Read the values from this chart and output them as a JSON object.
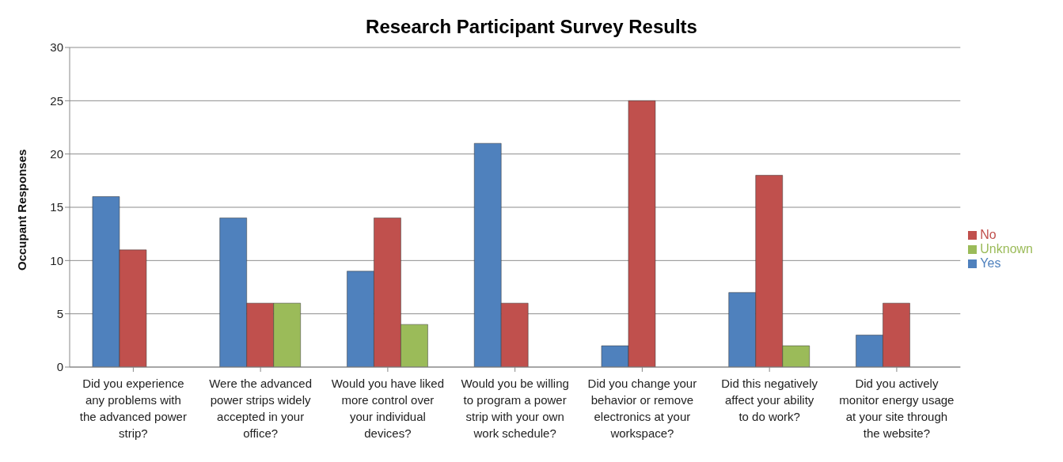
{
  "chart_data": {
    "type": "bar",
    "title": "Research Participant Survey Results",
    "ylabel": "Occupant Responses",
    "categories": [
      "Did you experience any problems with the advanced power strip?",
      "Were the advanced power strips widely accepted in your office?",
      "Would you have liked more control over your individual devices?",
      "Would you be willing to program a power strip with your own work schedule?",
      "Did you change your behavior or remove electronics at your workspace?",
      "Did this negatively affect your ability to do work?",
      "Did you actively monitor energy usage at your site through the website?"
    ],
    "series": [
      {
        "name": "Yes",
        "color": "#4f81bd",
        "values": [
          16,
          14,
          9,
          21,
          2,
          7,
          3
        ]
      },
      {
        "name": "No",
        "color": "#c0504d",
        "values": [
          11,
          6,
          14,
          6,
          25,
          18,
          6
        ]
      },
      {
        "name": "Unknown",
        "color": "#9bbb59",
        "values": [
          null,
          6,
          4,
          null,
          null,
          2,
          null
        ]
      }
    ],
    "ylim": [
      0,
      30
    ],
    "yticks": [
      0,
      5,
      10,
      15,
      20,
      25,
      30
    ],
    "grid": "y",
    "legend": "right"
  }
}
